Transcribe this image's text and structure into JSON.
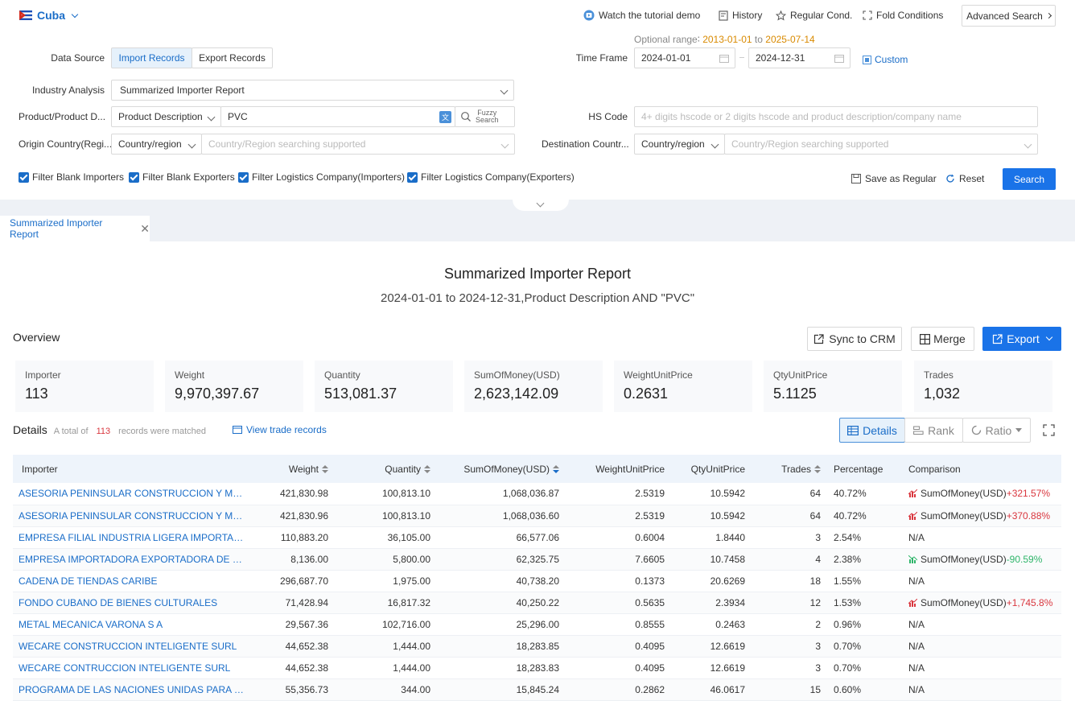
{
  "header": {
    "country": "Cuba",
    "tutorial": "Watch the tutorial demo",
    "history": "History",
    "regular_cond": "Regular Cond.",
    "fold": "Fold Conditions",
    "advanced": "Advanced Search"
  },
  "form": {
    "optional_range_label": "Optional range∶",
    "optional_start": "2013-01-01",
    "optional_to": "to",
    "optional_end": "2025-07-14",
    "data_source_label": "Data Source",
    "import_btn": "Import Records",
    "export_btn": "Export Records",
    "time_frame_label": "Time Frame",
    "date_start": "2024-01-01",
    "date_end": "2024-12-31",
    "custom": "Custom",
    "industry_label": "Industry Analysis",
    "industry_value": "Summarized Importer Report",
    "product_label": "Product/Product D...",
    "product_type": "Product Description",
    "product_value": "PVC",
    "fuzzy1": "Fuzzy",
    "fuzzy2": "Search",
    "hs_label": "HS Code",
    "hs_placeholder": "4+ digits hscode or 2 digits hscode and product description/company name",
    "origin_label": "Origin Country(Regi...",
    "origin_type": "Country/region",
    "origin_placeholder": "Country/Region searching supported",
    "dest_label": "Destination Countr...",
    "dest_type": "Country/region",
    "dest_placeholder": "Country/Region searching supported",
    "filters": [
      "Filter Blank Importers",
      "Filter Blank Exporters",
      "Filter Logistics Company(Importers)",
      "Filter Logistics Company(Exporters)"
    ],
    "save_regular": "Save as Regular",
    "reset": "Reset",
    "search": "Search"
  },
  "tab": {
    "label": "Summarized Importer Report"
  },
  "report": {
    "title": "Summarized Importer Report",
    "subtitle": "2024-01-01 to 2024-12-31,Product Description AND \"PVC\"",
    "overview": "Overview",
    "sync": "Sync to CRM",
    "merge": "Merge",
    "export": "Export"
  },
  "stats": [
    {
      "label": "Importer",
      "value": "113"
    },
    {
      "label": "Weight",
      "value": "9,970,397.67"
    },
    {
      "label": "Quantity",
      "value": "513,081.37"
    },
    {
      "label": "SumOfMoney(USD)",
      "value": "2,623,142.09"
    },
    {
      "label": "WeightUnitPrice",
      "value": "0.2631"
    },
    {
      "label": "QtyUnitPrice",
      "value": "5.1125"
    },
    {
      "label": "Trades",
      "value": "1,032"
    }
  ],
  "details": {
    "title": "Details",
    "total_prefix": "A total of",
    "total_count": "113",
    "total_suffix": "records were matched",
    "view_trade": "View trade records",
    "view_details": "Details",
    "view_rank": "Rank",
    "view_ratio": "Ratio"
  },
  "table": {
    "columns": [
      "Importer",
      "Weight",
      "Quantity",
      "SumOfMoney(USD)",
      "WeightUnitPrice",
      "QtyUnitPrice",
      "Trades",
      "Percentage",
      "Comparison"
    ],
    "rows": [
      {
        "importer": "ASESORIA PENINSULAR CONSTRUCCION Y MANTENIMIENTO",
        "weight": "421,830.98",
        "quantity": "100,813.10",
        "money": "1,068,036.87",
        "wup": "2.5319",
        "qup": "10.5942",
        "trades": "64",
        "pct": "40.72%",
        "cmp_label": "SumOfMoney(USD)",
        "cmp_value": "+321.57%",
        "trend": "up"
      },
      {
        "importer": "ASESORIA PENINSULAR CONSTRUCCION Y MANTENIMIENTO",
        "weight": "421,830.96",
        "quantity": "100,813.10",
        "money": "1,068,036.60",
        "wup": "2.5319",
        "qup": "10.5942",
        "trades": "64",
        "pct": "40.72%",
        "cmp_label": "SumOfMoney(USD)",
        "cmp_value": "+370.88%",
        "trend": "up"
      },
      {
        "importer": "EMPRESA FILIAL INDUSTRIA LIGERA IMPORTACION EXPORTACION",
        "weight": "110,883.20",
        "quantity": "36,105.00",
        "money": "66,577.06",
        "wup": "0.6004",
        "qup": "1.8440",
        "trades": "3",
        "pct": "2.54%",
        "cmp_label": "N/A",
        "cmp_value": "",
        "trend": "none"
      },
      {
        "importer": "EMPRESA IMPORTADORA EXPORTADORA DE PRODUCTOS",
        "weight": "8,136.00",
        "quantity": "5,800.00",
        "money": "62,325.75",
        "wup": "7.6605",
        "qup": "10.7458",
        "trades": "4",
        "pct": "2.38%",
        "cmp_label": "SumOfMoney(USD)",
        "cmp_value": "-90.59%",
        "trend": "down"
      },
      {
        "importer": "CADENA DE TIENDAS CARIBE",
        "weight": "296,687.70",
        "quantity": "1,975.00",
        "money": "40,738.20",
        "wup": "0.1373",
        "qup": "20.6269",
        "trades": "18",
        "pct": "1.55%",
        "cmp_label": "N/A",
        "cmp_value": "",
        "trend": "none"
      },
      {
        "importer": "FONDO CUBANO DE BIENES CULTURALES",
        "weight": "71,428.94",
        "quantity": "16,817.32",
        "money": "40,250.22",
        "wup": "0.5635",
        "qup": "2.3934",
        "trades": "12",
        "pct": "1.53%",
        "cmp_label": "SumOfMoney(USD)",
        "cmp_value": "+1,745.8%",
        "trend": "up"
      },
      {
        "importer": "METAL MECANICA VARONA S A",
        "weight": "29,567.36",
        "quantity": "102,716.00",
        "money": "25,296.00",
        "wup": "0.8555",
        "qup": "0.2463",
        "trades": "2",
        "pct": "0.96%",
        "cmp_label": "N/A",
        "cmp_value": "",
        "trend": "none"
      },
      {
        "importer": "WECARE CONSTRUCCION INTELIGENTE SURL",
        "weight": "44,652.38",
        "quantity": "1,444.00",
        "money": "18,283.85",
        "wup": "0.4095",
        "qup": "12.6619",
        "trades": "3",
        "pct": "0.70%",
        "cmp_label": "N/A",
        "cmp_value": "",
        "trend": "none"
      },
      {
        "importer": "WECARE CONTRUCCION INTELIGENTE SURL",
        "weight": "44,652.38",
        "quantity": "1,444.00",
        "money": "18,283.83",
        "wup": "0.4095",
        "qup": "12.6619",
        "trades": "3",
        "pct": "0.70%",
        "cmp_label": "N/A",
        "cmp_value": "",
        "trend": "none"
      },
      {
        "importer": "PROGRAMA DE LAS NACIONES UNIDAS PARA EL DESARROLLO",
        "weight": "55,356.73",
        "quantity": "344.00",
        "money": "15,845.24",
        "wup": "0.2862",
        "qup": "46.0617",
        "trades": "15",
        "pct": "0.60%",
        "cmp_label": "N/A",
        "cmp_value": "",
        "trend": "none"
      }
    ]
  }
}
